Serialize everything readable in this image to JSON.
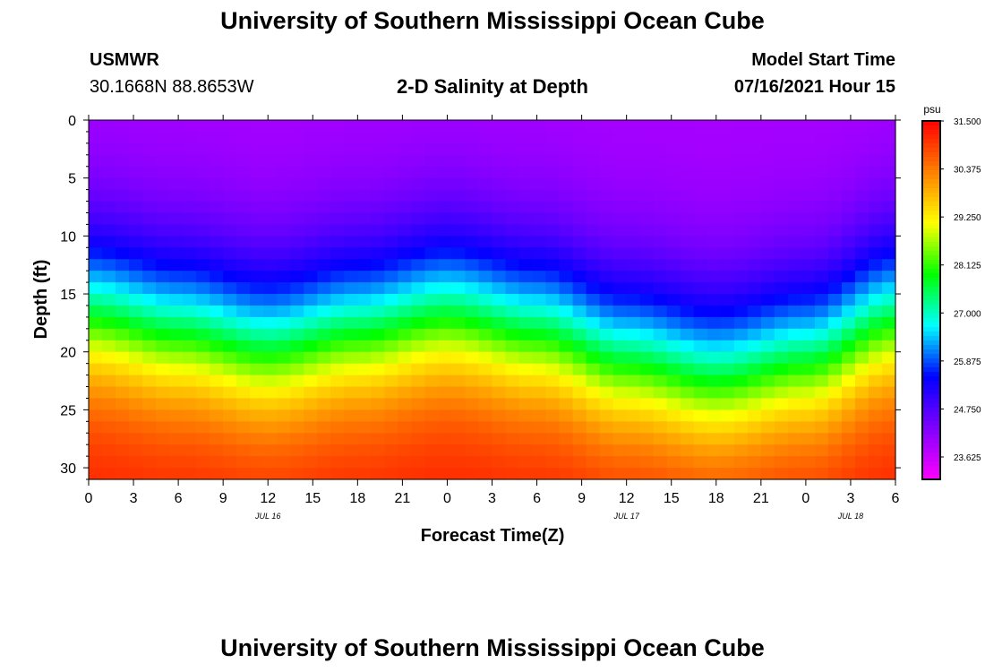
{
  "header": {
    "title": "University of Southern Mississippi Ocean Cube",
    "station": "USMWR",
    "coordinates": "30.1668N  88.8653W",
    "plot_title": "2-D Salinity at Depth",
    "model_start_label": "Model Start Time",
    "model_start_value": "07/16/2021 Hour 15"
  },
  "footer": {
    "title": "University of Southern Mississippi Ocean Cube"
  },
  "chart_data": {
    "type": "heatmap",
    "title": "2-D Salinity at Depth",
    "xlabel": "Forecast Time(Z)",
    "ylabel": "Depth (ft)",
    "x_range_hours": [
      0,
      54
    ],
    "y_range_ft": [
      0,
      31
    ],
    "x_tick_labels": [
      "0",
      "3",
      "6",
      "9",
      "12",
      "15",
      "18",
      "21",
      "0",
      "3",
      "6",
      "9",
      "12",
      "15",
      "18",
      "21",
      "0",
      "3",
      "6"
    ],
    "y_tick_labels": [
      "0",
      "5",
      "10",
      "15",
      "20",
      "25",
      "30"
    ],
    "y_tick_values": [
      0,
      5,
      10,
      15,
      20,
      25,
      30
    ],
    "date_labels": [
      {
        "label": "JUL 16",
        "hour": 12
      },
      {
        "label": "JUL 17",
        "hour": 36
      },
      {
        "label": "JUL 18",
        "hour": 51
      }
    ],
    "colorbar": {
      "units": "psu",
      "min": 23.1,
      "max": 31.5,
      "tick_labels": [
        "31.500",
        "30.375",
        "29.250",
        "28.125",
        "27.000",
        "25.875",
        "24.750",
        "23.625"
      ],
      "tick_values": [
        31.5,
        30.375,
        29.25,
        28.125,
        27.0,
        25.875,
        24.75,
        23.625
      ],
      "colors": [
        "#ff00ff",
        "#8000ff",
        "#0000ff",
        "#00ffff",
        "#00ff00",
        "#ffff00",
        "#ff8000",
        "#ff0000"
      ]
    },
    "grid": {
      "cols": 60,
      "rows": 31,
      "surface_salinity": 23.9,
      "bottom_salinity": 31.3,
      "gradient_center_depth_ft": [
        16.5,
        18,
        19.5,
        18,
        16.5,
        18,
        20.5,
        22,
        20.5,
        17
      ]
    }
  }
}
